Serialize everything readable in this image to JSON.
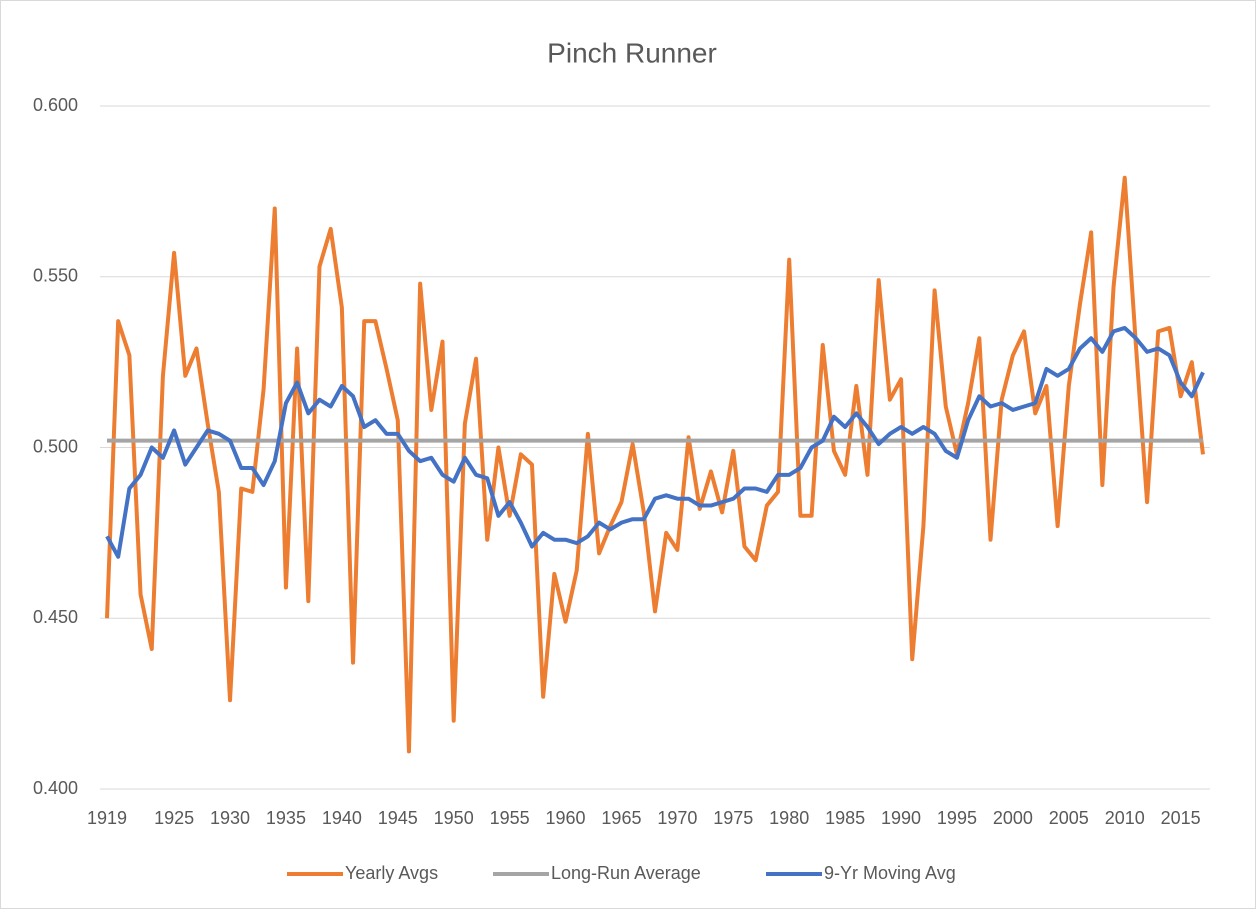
{
  "chart_data": {
    "type": "line",
    "title": "Pinch Runner",
    "x": [
      1919,
      1920,
      1921,
      1922,
      1923,
      1924,
      1925,
      1926,
      1927,
      1928,
      1929,
      1930,
      1931,
      1932,
      1933,
      1934,
      1935,
      1936,
      1937,
      1938,
      1939,
      1940,
      1941,
      1942,
      1943,
      1944,
      1945,
      1946,
      1947,
      1948,
      1949,
      1950,
      1951,
      1952,
      1953,
      1954,
      1955,
      1956,
      1957,
      1958,
      1959,
      1960,
      1961,
      1962,
      1963,
      1964,
      1965,
      1966,
      1967,
      1968,
      1969,
      1970,
      1971,
      1972,
      1973,
      1974,
      1975,
      1976,
      1977,
      1978,
      1979,
      1980,
      1981,
      1982,
      1983,
      1984,
      1985,
      1986,
      1987,
      1988,
      1989,
      1990,
      1991,
      1992,
      1993,
      1994,
      1995,
      1996,
      1997,
      1998,
      1999,
      2000,
      2001,
      2002,
      2003,
      2004,
      2005,
      2006,
      2007,
      2008,
      2009,
      2010,
      2011,
      2012,
      2013,
      2014,
      2015,
      2016,
      2017
    ],
    "series": [
      {
        "name": "Yearly Avgs",
        "color": "#ed7d31",
        "values": [
          0.45,
          0.537,
          0.527,
          0.457,
          0.441,
          0.521,
          0.557,
          0.521,
          0.529,
          0.507,
          0.487,
          0.426,
          0.488,
          0.487,
          0.517,
          0.57,
          0.459,
          0.529,
          0.455,
          0.553,
          0.564,
          0.541,
          0.437,
          0.537,
          0.537,
          0.523,
          0.508,
          0.411,
          0.548,
          0.511,
          0.531,
          0.42,
          0.507,
          0.526,
          0.473,
          0.5,
          0.48,
          0.498,
          0.495,
          0.427,
          0.463,
          0.449,
          0.464,
          0.504,
          0.469,
          0.477,
          0.484,
          0.501,
          0.481,
          0.452,
          0.475,
          0.47,
          0.503,
          0.482,
          0.493,
          0.481,
          0.499,
          0.471,
          0.467,
          0.483,
          0.487,
          0.555,
          0.48,
          0.48,
          0.53,
          0.499,
          0.492,
          0.518,
          0.492,
          0.549,
          0.514,
          0.52,
          0.438,
          0.477,
          0.546,
          0.512,
          0.498,
          0.513,
          0.532,
          0.473,
          0.514,
          0.527,
          0.534,
          0.51,
          0.518,
          0.477,
          0.518,
          0.542,
          0.563,
          0.489,
          0.547,
          0.579,
          0.53,
          0.484,
          0.534,
          0.535,
          0.515,
          0.525,
          0.498
        ]
      },
      {
        "name": "Long-Run Average",
        "color": "#a5a5a5",
        "values": [
          0.502,
          0.502,
          0.502,
          0.502,
          0.502,
          0.502,
          0.502,
          0.502,
          0.502,
          0.502,
          0.502,
          0.502,
          0.502,
          0.502,
          0.502,
          0.502,
          0.502,
          0.502,
          0.502,
          0.502,
          0.502,
          0.502,
          0.502,
          0.502,
          0.502,
          0.502,
          0.502,
          0.502,
          0.502,
          0.502,
          0.502,
          0.502,
          0.502,
          0.502,
          0.502,
          0.502,
          0.502,
          0.502,
          0.502,
          0.502,
          0.502,
          0.502,
          0.502,
          0.502,
          0.502,
          0.502,
          0.502,
          0.502,
          0.502,
          0.502,
          0.502,
          0.502,
          0.502,
          0.502,
          0.502,
          0.502,
          0.502,
          0.502,
          0.502,
          0.502,
          0.502,
          0.502,
          0.502,
          0.502,
          0.502,
          0.502,
          0.502,
          0.502,
          0.502,
          0.502,
          0.502,
          0.502,
          0.502,
          0.502,
          0.502,
          0.502,
          0.502,
          0.502,
          0.502,
          0.502,
          0.502,
          0.502,
          0.502,
          0.502,
          0.502,
          0.502,
          0.502,
          0.502,
          0.502,
          0.502,
          0.502,
          0.502,
          0.502,
          0.502,
          0.502,
          0.502,
          0.502,
          0.502,
          0.502
        ]
      },
      {
        "name": "9-Yr Moving Avg",
        "color": "#4472c4",
        "values": [
          0.474,
          0.468,
          0.488,
          0.492,
          0.5,
          0.497,
          0.505,
          0.495,
          0.5,
          0.505,
          0.504,
          0.502,
          0.494,
          0.494,
          0.489,
          0.496,
          0.513,
          0.519,
          0.51,
          0.514,
          0.512,
          0.518,
          0.515,
          0.506,
          0.508,
          0.504,
          0.504,
          0.499,
          0.496,
          0.497,
          0.492,
          0.49,
          0.497,
          0.492,
          0.491,
          0.48,
          0.484,
          0.478,
          0.471,
          0.475,
          0.473,
          0.473,
          0.472,
          0.474,
          0.478,
          0.476,
          0.478,
          0.479,
          0.479,
          0.485,
          0.486,
          0.485,
          0.485,
          0.483,
          0.483,
          0.484,
          0.485,
          0.488,
          0.488,
          0.487,
          0.492,
          0.492,
          0.494,
          0.5,
          0.502,
          0.509,
          0.506,
          0.51,
          0.506,
          0.501,
          0.504,
          0.506,
          0.504,
          0.506,
          0.504,
          0.499,
          0.497,
          0.508,
          0.515,
          0.512,
          0.513,
          0.511,
          0.512,
          0.513,
          0.523,
          0.521,
          0.523,
          0.529,
          0.532,
          0.528,
          0.534,
          0.535,
          0.532,
          0.528,
          0.529,
          0.527,
          0.519,
          0.515,
          0.522
        ]
      }
    ],
    "xlim": [
      1919,
      2017
    ],
    "xticks": [
      1919,
      1925,
      1930,
      1935,
      1940,
      1945,
      1950,
      1955,
      1960,
      1965,
      1970,
      1975,
      1980,
      1985,
      1990,
      1995,
      2000,
      2005,
      2010,
      2015
    ],
    "ylim": [
      0.4,
      0.6
    ],
    "yticks": [
      {
        "value": 0.4,
        "label": "0.400"
      },
      {
        "value": 0.45,
        "label": "0.450"
      },
      {
        "value": 0.5,
        "label": "0.500"
      },
      {
        "value": 0.55,
        "label": "0.550"
      },
      {
        "value": 0.6,
        "label": "0.600"
      }
    ],
    "grid": true,
    "legend": "bottom"
  }
}
